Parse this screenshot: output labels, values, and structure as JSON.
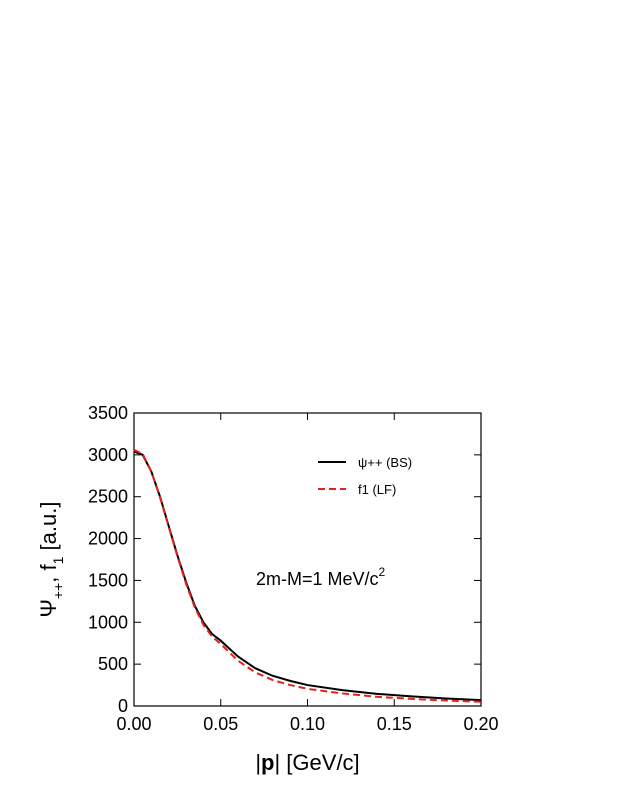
{
  "chart_data": {
    "type": "line",
    "xlabel": [
      "|",
      "p",
      "| [GeV/c]"
    ],
    "ylabel": [
      "Ψ",
      "++",
      ", f",
      "1",
      " [a.u.]"
    ],
    "annotation": [
      "2m-M=1 MeV/c",
      "2"
    ],
    "x": [
      0,
      0.005,
      0.01,
      0.015,
      0.02,
      0.025,
      0.03,
      0.035,
      0.04,
      0.045,
      0.05,
      0.06,
      0.07,
      0.08,
      0.09,
      0.1,
      0.12,
      0.14,
      0.16,
      0.18,
      0.2
    ],
    "series": [
      {
        "name": "ψ++ (BS)",
        "color": "#000000",
        "linestyle": "solid",
        "values": [
          3040,
          3000,
          2800,
          2500,
          2150,
          1800,
          1480,
          1200,
          1000,
          860,
          780,
          590,
          450,
          360,
          300,
          250,
          190,
          145,
          115,
          90,
          70
        ]
      },
      {
        "name": "f1 (LF)",
        "color": "#e8201a",
        "linestyle": "dashed",
        "values": [
          3060,
          3010,
          2800,
          2490,
          2140,
          1790,
          1460,
          1180,
          970,
          830,
          740,
          540,
          400,
          310,
          250,
          205,
          150,
          110,
          85,
          65,
          50
        ]
      }
    ],
    "xlim": [
      0,
      0.2
    ],
    "xticks": [
      {
        "value": 0,
        "label": "0.00"
      },
      0.05,
      {
        "value": 0.1,
        "label": "0.10"
      },
      0.15,
      {
        "value": 0.2,
        "label": "0.20"
      }
    ],
    "ylim": [
      0,
      3500
    ],
    "yticks": [
      0,
      500,
      1000,
      1500,
      2000,
      2500,
      3000,
      3500
    ],
    "legend": "upper right",
    "grid": false
  }
}
